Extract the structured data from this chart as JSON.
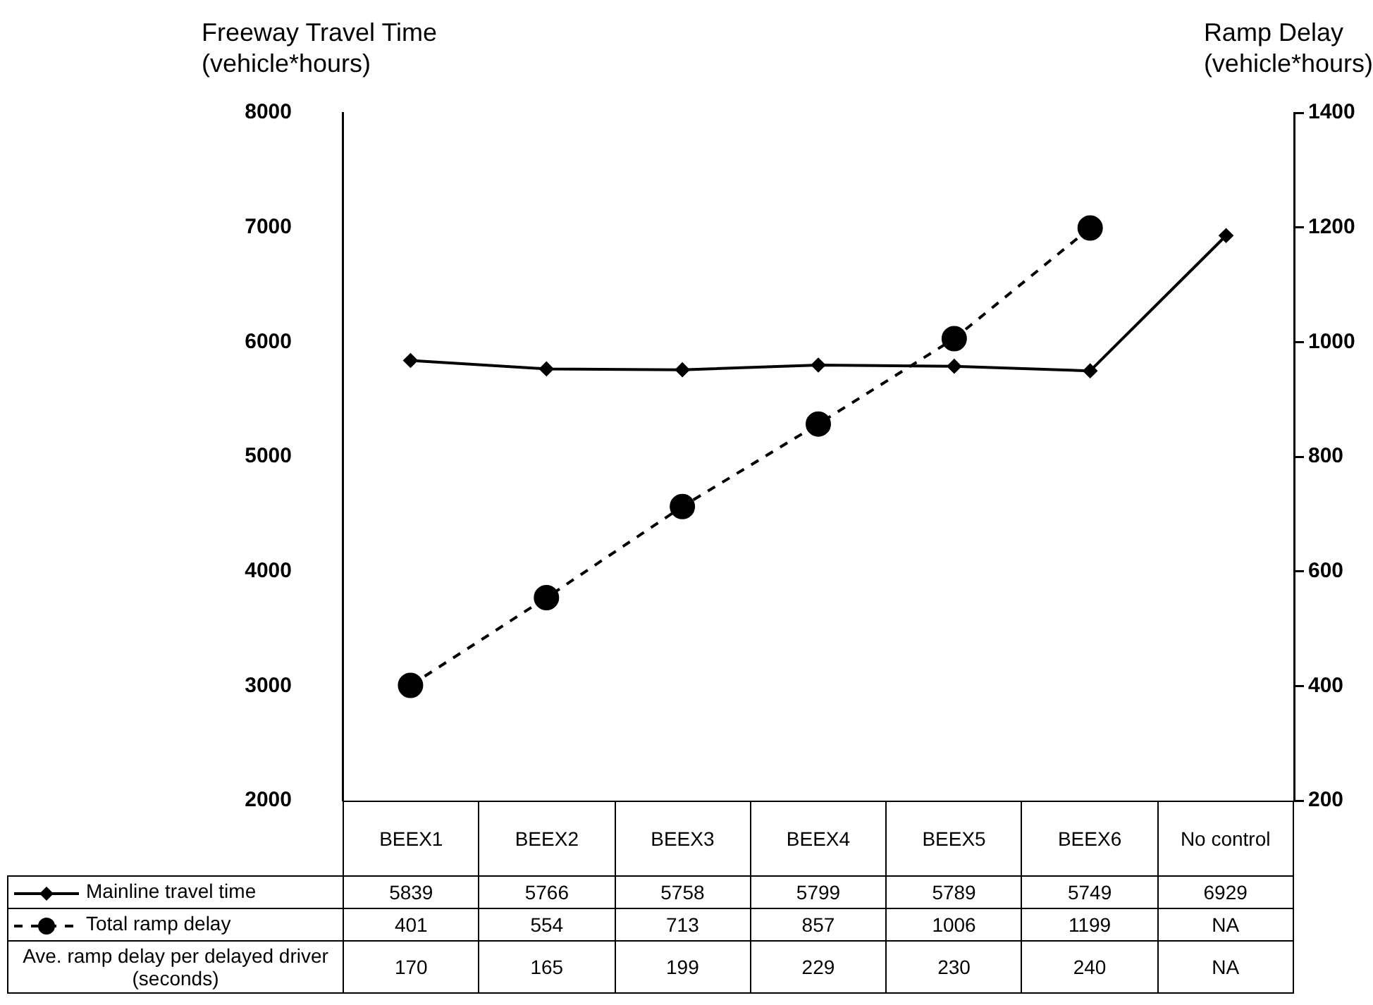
{
  "chart_data": {
    "type": "line",
    "xlabel": null,
    "ylabel": "Freeway Travel Time\n(vehicle*hours)",
    "y2label": "Ramp Delay\n(vehicle*hours)",
    "categories": [
      "BEEX1",
      "BEEX2",
      "BEEX3",
      "BEEX4",
      "BEEX5",
      "BEEX6",
      "No control"
    ],
    "series": [
      {
        "name": "Mainline travel time",
        "color": "#000000",
        "marker": "diamond",
        "line_style": "solid",
        "values": [
          5839,
          5766,
          5758,
          5799,
          5789,
          5749,
          6929
        ]
      },
      {
        "name": "Total ramp delay",
        "axis": "y2",
        "color": "#000000",
        "marker": "circle",
        "line_style": "dashed",
        "values": [
          401,
          554,
          713,
          857,
          1006,
          1199,
          null
        ],
        "value_labels": [
          "401",
          "554",
          "713",
          "857",
          "1006",
          "1199",
          "NA"
        ]
      },
      {
        "name": "Ave. ramp delay per delayed driver (seconds)",
        "values": [
          null,
          null,
          null,
          null,
          null,
          null,
          null
        ],
        "value_labels": [
          "170",
          "165",
          "199",
          "229",
          "230",
          "240",
          "NA"
        ]
      }
    ],
    "ylim": [
      2000,
      8000
    ],
    "yticks": [
      2000,
      3000,
      4000,
      5000,
      6000,
      7000,
      8000
    ],
    "y2lim": [
      200,
      1400
    ],
    "y2ticks": [
      200,
      400,
      600,
      800,
      1000,
      1200,
      1400
    ],
    "grid": false,
    "legend": "bottom left",
    "data_labels": true
  }
}
